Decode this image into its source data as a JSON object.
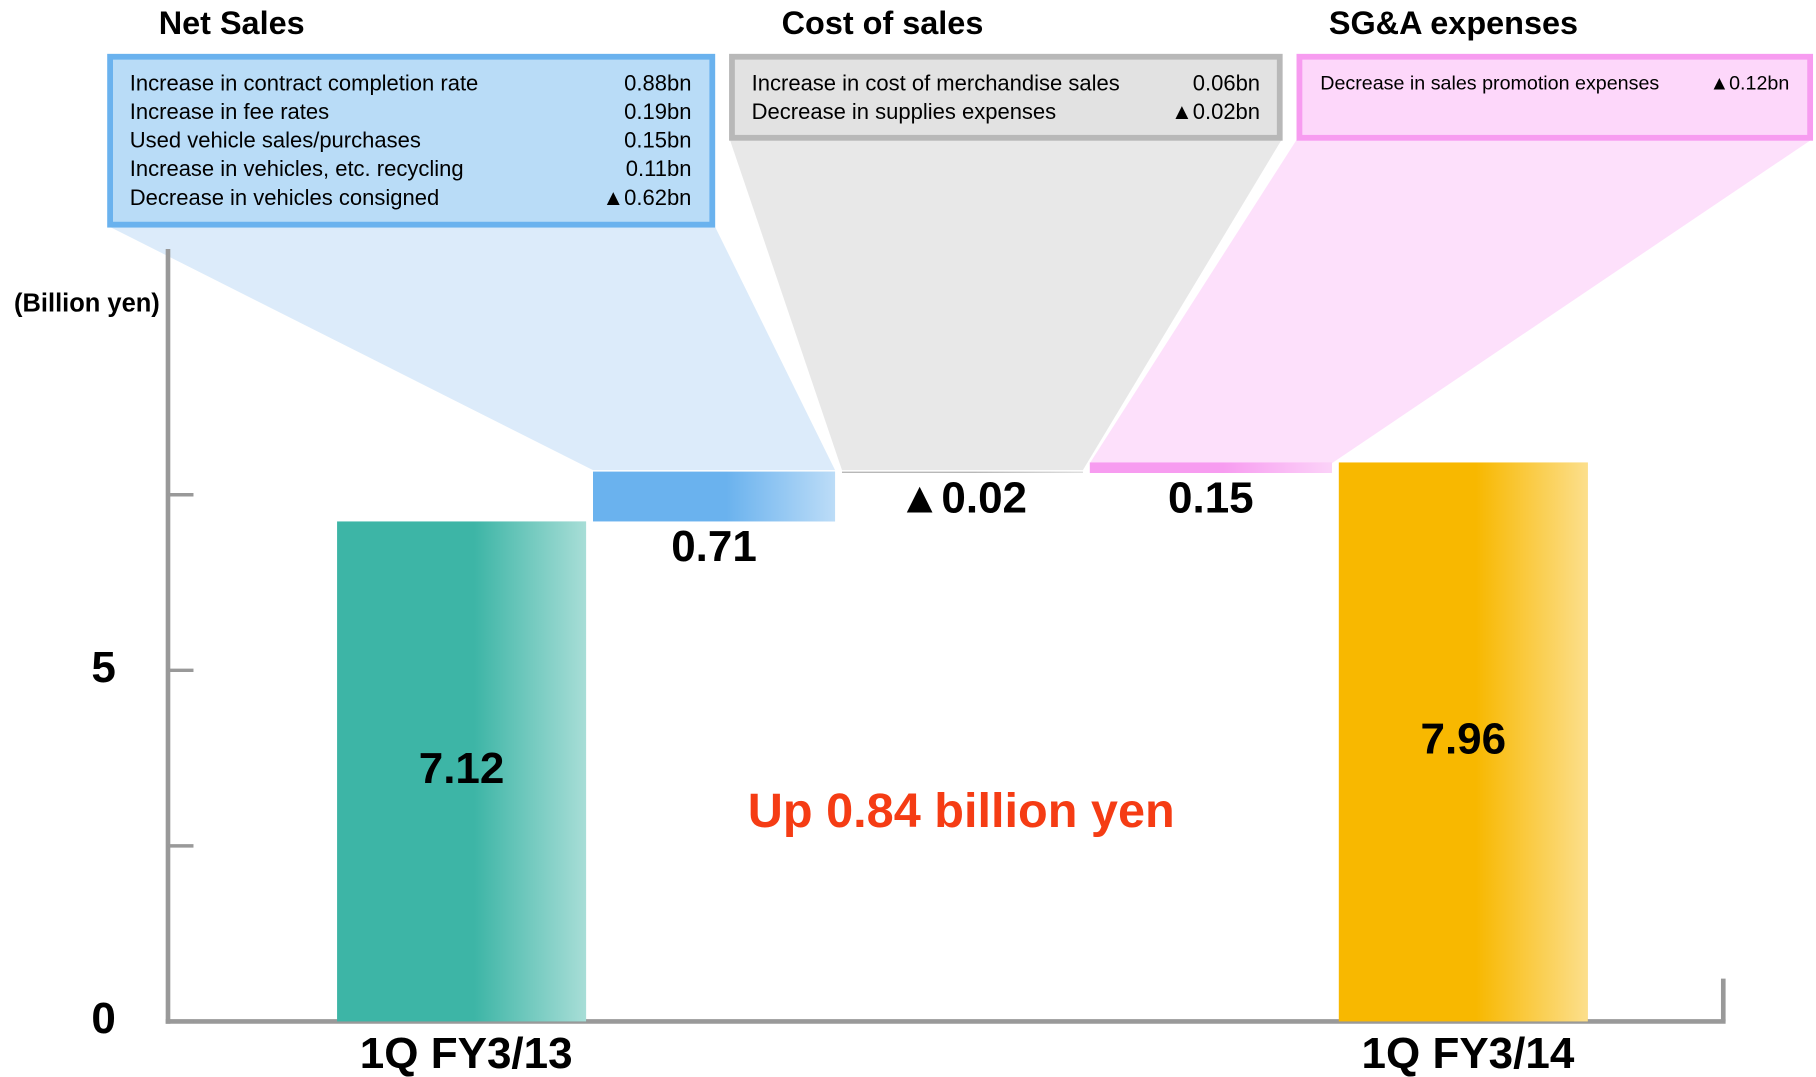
{
  "chart_data": {
    "type": "waterfall",
    "categories": [
      "1Q FY3/13",
      null,
      null,
      null,
      "1Q FY3/14"
    ],
    "values": [
      7.12,
      0.71,
      -0.02,
      0.15,
      7.96
    ],
    "value_labels": [
      "7.12",
      "0.71",
      "▲0.02",
      "0.15",
      "7.96"
    ],
    "totals": [
      true,
      false,
      false,
      false,
      true
    ],
    "colors": [
      "#3db5a6",
      "#6ab2ee",
      "#b8b8b8",
      "#f79cf0",
      "#f8b800"
    ],
    "ylim": [
      0,
      11
    ],
    "yticks": [
      0,
      5
    ],
    "minor_yticks": [
      2.5,
      7.5
    ],
    "ylabel": "(Billion yen)",
    "annotation": "Up 0.84 billion yen"
  },
  "callouts": [
    {
      "title": "Net Sales",
      "items": [
        {
          "label": "Increase in contract completion rate",
          "value": "0.88bn"
        },
        {
          "label": "Increase in fee rates",
          "value": "0.19bn"
        },
        {
          "label": "Used vehicle sales/purchases",
          "value": "0.15bn"
        },
        {
          "label": "Increase in vehicles, etc. recycling",
          "value": "0.11bn"
        },
        {
          "label": "Decrease in vehicles consigned",
          "value": "▲0.62bn"
        }
      ]
    },
    {
      "title": "Cost of sales",
      "items": [
        {
          "label": "Increase in cost of merchandise sales",
          "value": "0.06bn"
        },
        {
          "label": "Decrease in supplies expenses",
          "value": "▲0.02bn"
        }
      ]
    },
    {
      "title": "SG&A expenses",
      "items": [
        {
          "label": "Decrease in sales promotion expenses",
          "value": "▲0.12bn"
        }
      ]
    }
  ]
}
